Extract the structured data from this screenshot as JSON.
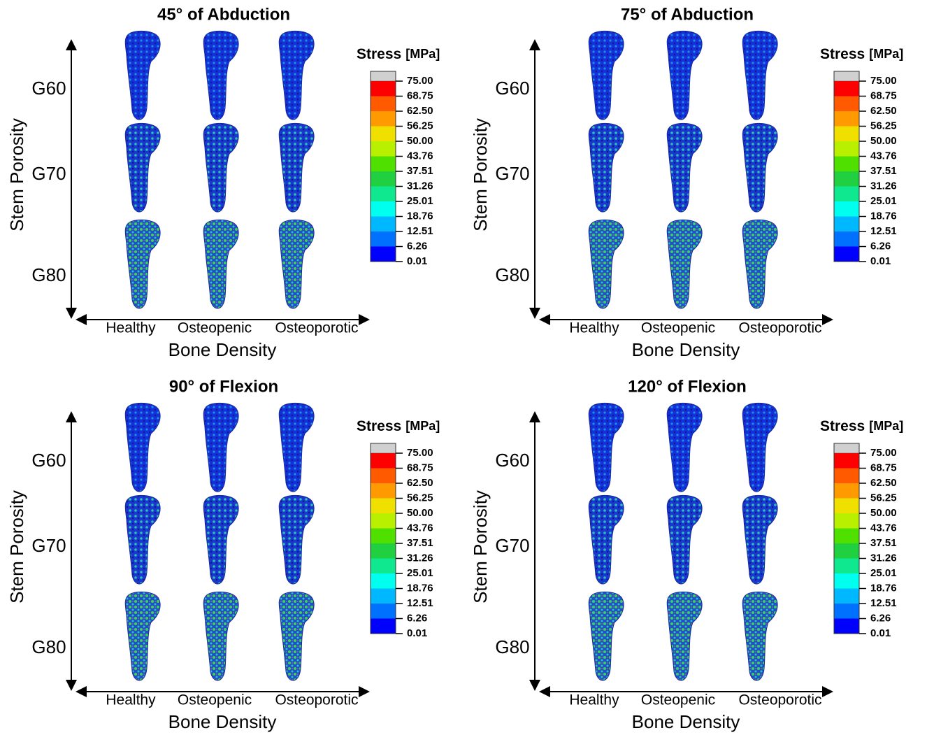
{
  "panels": [
    {
      "title": "45° of Abduction",
      "y_axis_label": "Stem Porosity",
      "x_axis_label": "Bone Density",
      "rows": [
        "G60",
        "G70",
        "G80"
      ],
      "columns": [
        "Healthy",
        "Osteopenic",
        "Osteoporotic"
      ],
      "legend": {
        "title": "Stress",
        "unit": "[MPa]",
        "labels": [
          "75.00",
          "68.75",
          "62.50",
          "56.25",
          "50.00",
          "43.76",
          "37.51",
          "31.26",
          "25.01",
          "18.76",
          "12.51",
          "6.26",
          "0.01"
        ]
      }
    },
    {
      "title": "75° of Abduction",
      "y_axis_label": "Stem Porosity",
      "x_axis_label": "Bone Density",
      "rows": [
        "G60",
        "G70",
        "G80"
      ],
      "columns": [
        "Healthy",
        "Osteopenic",
        "Osteoporotic"
      ],
      "legend": {
        "title": "Stress",
        "unit": "[MPa]",
        "labels": [
          "75.00",
          "68.75",
          "62.50",
          "56.25",
          "50.00",
          "43.76",
          "37.51",
          "31.26",
          "25.01",
          "18.76",
          "12.51",
          "6.26",
          "0.01"
        ]
      }
    },
    {
      "title": "90° of Flexion",
      "y_axis_label": "Stem Porosity",
      "x_axis_label": "Bone Density",
      "rows": [
        "G60",
        "G70",
        "G80"
      ],
      "columns": [
        "Healthy",
        "Osteopenic",
        "Osteoporotic"
      ],
      "legend": {
        "title": "Stress",
        "unit": "[MPa]",
        "labels": [
          "75.00",
          "68.75",
          "62.50",
          "56.25",
          "50.00",
          "43.76",
          "37.51",
          "31.26",
          "25.01",
          "18.76",
          "12.51",
          "6.26",
          "0.01"
        ]
      }
    },
    {
      "title": "120° of Flexion",
      "y_axis_label": "Stem Porosity",
      "x_axis_label": "Bone Density",
      "rows": [
        "G60",
        "G70",
        "G80"
      ],
      "columns": [
        "Healthy",
        "Osteopenic",
        "Osteoporotic"
      ],
      "legend": {
        "title": "Stress",
        "unit": "[MPa]",
        "labels": [
          "75.00",
          "68.75",
          "62.50",
          "56.25",
          "50.00",
          "43.76",
          "37.51",
          "31.26",
          "25.01",
          "18.76",
          "12.51",
          "6.26",
          "0.01"
        ]
      }
    }
  ]
}
